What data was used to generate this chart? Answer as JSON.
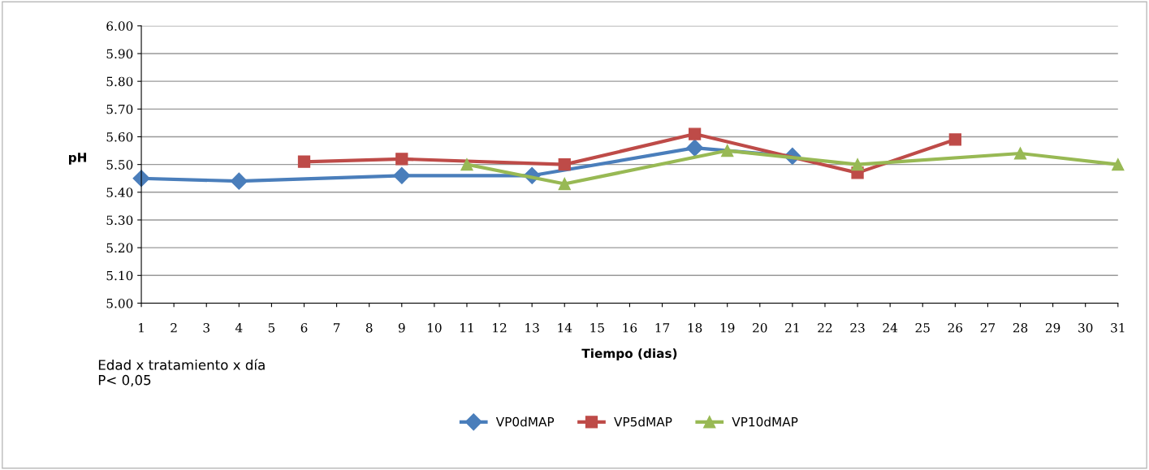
{
  "chart_data": {
    "type": "line",
    "xlabel": "Tiempo (dias)",
    "ylabel": "pH",
    "xlim": [
      1,
      31
    ],
    "xticks": [
      1,
      2,
      3,
      4,
      5,
      6,
      7,
      8,
      9,
      10,
      11,
      12,
      13,
      14,
      15,
      16,
      17,
      18,
      19,
      20,
      21,
      22,
      23,
      24,
      25,
      26,
      27,
      28,
      29,
      30,
      31
    ],
    "ylim": [
      5.0,
      6.0
    ],
    "yticks": [
      {
        "value": 5.0,
        "label": "5.00"
      },
      {
        "value": 5.1,
        "label": "5.10"
      },
      {
        "value": 5.2,
        "label": "5.20"
      },
      {
        "value": 5.3,
        "label": "5.30"
      },
      {
        "value": 5.4,
        "label": "5.40"
      },
      {
        "value": 5.5,
        "label": "5.50"
      },
      {
        "value": 5.6,
        "label": "5.60"
      },
      {
        "value": 5.7,
        "label": "5.70"
      },
      {
        "value": 5.8,
        "label": "5.80"
      },
      {
        "value": 5.9,
        "label": "5.90"
      },
      {
        "value": 6.0,
        "label": "6.00"
      }
    ],
    "grid": "y",
    "legend": "bottom",
    "annotations": [
      "Edad x tratamiento x día\nP< 0,05"
    ],
    "series": [
      {
        "name": "VP0dMAP",
        "color": "#4a7ebb",
        "marker": "diamond",
        "x": [
          1,
          4,
          9,
          13,
          18,
          21
        ],
        "values": [
          5.45,
          5.44,
          5.46,
          5.46,
          5.56,
          5.53
        ]
      },
      {
        "name": "VP5dMAP",
        "color": "#be4b48",
        "marker": "square",
        "x": [
          6,
          9,
          14,
          18,
          23,
          26
        ],
        "values": [
          5.51,
          5.52,
          5.5,
          5.61,
          5.47,
          5.59
        ]
      },
      {
        "name": "VP10dMAP",
        "color": "#98b954",
        "marker": "triangle",
        "x": [
          11,
          14,
          19,
          23,
          28,
          31
        ],
        "values": [
          5.5,
          5.43,
          5.55,
          5.5,
          5.54,
          5.5
        ]
      }
    ]
  }
}
